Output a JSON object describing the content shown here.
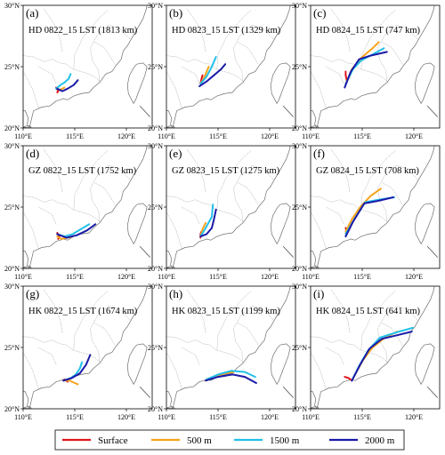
{
  "axes": {
    "x_ticks": [
      "110°E",
      "115°E",
      "120°E"
    ],
    "y_ticks": [
      "30°N",
      "25°N",
      "20°N"
    ],
    "x_tick_values": [
      110,
      115,
      120
    ],
    "y_tick_values": [
      30,
      25,
      20
    ],
    "lon_range": [
      110,
      122.5
    ],
    "lat_range": [
      20,
      30
    ]
  },
  "legend": [
    {
      "label": "Surface",
      "color": "#e0161e"
    },
    {
      "label": "500 m",
      "color": "#f5a31a"
    },
    {
      "label": "1500 m",
      "color": "#22c0e8"
    },
    {
      "label": "2000 m",
      "color": "#1a1aa8"
    }
  ],
  "panels": [
    {
      "label": "(a)",
      "title": "HD 0822_15 LST (1813 km)",
      "tracks": [
        {
          "level": "Surface",
          "points": [
            [
              113.2,
              23.3
            ],
            [
              113.4,
              23.0
            ],
            [
              113.3,
              22.9
            ]
          ]
        },
        {
          "level": "500 m",
          "points": [
            [
              113.3,
              23.2
            ],
            [
              113.5,
              23.1
            ],
            [
              113.8,
              23.2
            ],
            [
              114.0,
              23.3
            ]
          ]
        },
        {
          "level": "1500 m",
          "points": [
            [
              113.2,
              23.2
            ],
            [
              113.6,
              23.5
            ],
            [
              114.0,
              23.7
            ],
            [
              114.4,
              24.0
            ],
            [
              114.6,
              24.4
            ]
          ]
        },
        {
          "level": "2000 m",
          "points": [
            [
              113.3,
              23.2
            ],
            [
              113.8,
              23.0
            ],
            [
              114.3,
              23.2
            ],
            [
              114.9,
              23.5
            ],
            [
              115.3,
              23.9
            ]
          ]
        }
      ]
    },
    {
      "label": "(b)",
      "title": "HD 0823_15 LST (1329 km)",
      "tracks": [
        {
          "level": "Surface",
          "points": [
            [
              113.3,
              23.6
            ],
            [
              113.4,
              24.0
            ],
            [
              113.5,
              24.3
            ]
          ]
        },
        {
          "level": "500 m",
          "points": [
            [
              113.3,
              23.6
            ],
            [
              113.6,
              24.0
            ],
            [
              113.9,
              24.6
            ],
            [
              114.1,
              25.0
            ]
          ]
        },
        {
          "level": "1500 m",
          "points": [
            [
              113.3,
              23.6
            ],
            [
              113.9,
              24.2
            ],
            [
              114.4,
              25.0
            ],
            [
              114.8,
              25.8
            ]
          ]
        },
        {
          "level": "2000 m",
          "points": [
            [
              113.2,
              23.4
            ],
            [
              113.9,
              23.8
            ],
            [
              114.6,
              24.3
            ],
            [
              115.3,
              24.8
            ],
            [
              115.7,
              25.2
            ]
          ]
        }
      ]
    },
    {
      "label": "(c)",
      "title": "HD 0824_15 LST (747 km)",
      "tracks": [
        {
          "level": "Surface",
          "points": [
            [
              113.5,
              23.9
            ],
            [
              113.4,
              24.3
            ],
            [
              113.4,
              24.6
            ]
          ]
        },
        {
          "level": "500 m",
          "points": [
            [
              113.4,
              23.6
            ],
            [
              114.0,
              24.8
            ],
            [
              114.9,
              25.7
            ],
            [
              116.0,
              26.5
            ],
            [
              116.6,
              27.0
            ]
          ]
        },
        {
          "level": "1500 m",
          "points": [
            [
              113.4,
              23.6
            ],
            [
              114.1,
              24.8
            ],
            [
              114.9,
              25.5
            ],
            [
              116.0,
              26.0
            ],
            [
              117.1,
              26.5
            ]
          ]
        },
        {
          "level": "2000 m",
          "points": [
            [
              113.3,
              23.3
            ],
            [
              113.9,
              24.6
            ],
            [
              114.7,
              25.6
            ],
            [
              115.8,
              25.9
            ],
            [
              117.4,
              26.2
            ]
          ]
        }
      ]
    },
    {
      "label": "(d)",
      "title": "GZ 0822_15 LST (1752 km)",
      "tracks": [
        {
          "level": "Surface",
          "points": [
            [
              113.3,
              22.9
            ],
            [
              113.5,
              22.6
            ],
            [
              113.4,
              22.4
            ]
          ]
        },
        {
          "level": "500 m",
          "points": [
            [
              113.3,
              22.6
            ],
            [
              113.7,
              22.4
            ],
            [
              114.3,
              22.5
            ],
            [
              114.8,
              22.6
            ]
          ]
        },
        {
          "level": "1500 m",
          "points": [
            [
              113.3,
              22.8
            ],
            [
              114.0,
              22.6
            ],
            [
              114.8,
              22.8
            ],
            [
              115.6,
              23.2
            ],
            [
              116.4,
              23.6
            ]
          ]
        },
        {
          "level": "2000 m",
          "points": [
            [
              113.3,
              22.8
            ],
            [
              114.2,
              22.5
            ],
            [
              115.2,
              22.7
            ],
            [
              116.2,
              23.1
            ],
            [
              117.0,
              23.6
            ]
          ]
        }
      ]
    },
    {
      "label": "(e)",
      "title": "GZ 0823_15 LST (1275 km)",
      "tracks": [
        {
          "level": "Surface",
          "points": [
            [
              113.3,
              22.5
            ],
            [
              113.3,
              22.8
            ],
            [
              113.4,
              23.0
            ]
          ]
        },
        {
          "level": "500 m",
          "points": [
            [
              113.3,
              22.6
            ],
            [
              113.5,
              23.2
            ],
            [
              113.8,
              23.7
            ]
          ]
        },
        {
          "level": "1500 m",
          "points": [
            [
              113.3,
              22.6
            ],
            [
              113.8,
              23.3
            ],
            [
              114.4,
              24.2
            ],
            [
              114.5,
              25.2
            ]
          ]
        },
        {
          "level": "2000 m",
          "points": [
            [
              113.3,
              22.6
            ],
            [
              113.9,
              22.8
            ],
            [
              114.4,
              23.3
            ],
            [
              114.6,
              24.0
            ],
            [
              114.8,
              24.8
            ]
          ]
        }
      ]
    },
    {
      "label": "(f)",
      "title": "GZ 0824_15 LST (708 km)",
      "tracks": [
        {
          "level": "Surface",
          "points": [
            [
              113.4,
              23.3
            ],
            [
              113.5,
              23.0
            ],
            [
              113.4,
              22.8
            ]
          ]
        },
        {
          "level": "500 m",
          "points": [
            [
              113.4,
              23.0
            ],
            [
              114.0,
              24.0
            ],
            [
              114.8,
              25.0
            ],
            [
              115.8,
              25.9
            ],
            [
              116.8,
              26.5
            ]
          ]
        },
        {
          "level": "1500 m",
          "points": [
            [
              113.4,
              22.8
            ],
            [
              114.3,
              24.1
            ],
            [
              115.3,
              25.4
            ],
            [
              116.6,
              25.6
            ],
            [
              118.1,
              25.8
            ]
          ]
        },
        {
          "level": "2000 m",
          "points": [
            [
              113.4,
              22.6
            ],
            [
              114.1,
              23.8
            ],
            [
              115.2,
              25.3
            ],
            [
              116.5,
              25.5
            ],
            [
              118.0,
              25.8
            ]
          ]
        }
      ]
    },
    {
      "label": "(g)",
      "title": "HK 0822_15 LST (1674 km)",
      "tracks": [
        {
          "level": "Surface",
          "points": [
            [
              114.0,
              22.4
            ],
            [
              114.2,
              22.3
            ],
            [
              114.3,
              22.2
            ]
          ]
        },
        {
          "level": "500 m",
          "points": [
            [
              113.9,
              22.3
            ],
            [
              114.5,
              22.3
            ],
            [
              115.0,
              22.1
            ],
            [
              115.3,
              22.0
            ]
          ]
        },
        {
          "level": "1500 m",
          "points": [
            [
              113.9,
              22.3
            ],
            [
              114.6,
              22.5
            ],
            [
              115.1,
              22.8
            ],
            [
              115.5,
              23.3
            ],
            [
              115.7,
              23.8
            ]
          ]
        },
        {
          "level": "2000 m",
          "points": [
            [
              113.9,
              22.3
            ],
            [
              114.7,
              22.5
            ],
            [
              115.5,
              22.9
            ],
            [
              116.1,
              23.6
            ],
            [
              116.5,
              24.4
            ]
          ]
        }
      ]
    },
    {
      "label": "(h)",
      "title": "HK 0823_15 LST (1199 km)",
      "tracks": [
        {
          "level": "Surface",
          "points": [
            [
              113.9,
              22.4
            ],
            [
              114.2,
              22.5
            ],
            [
              114.6,
              22.6
            ]
          ]
        },
        {
          "level": "500 m",
          "points": [
            [
              113.9,
              22.4
            ],
            [
              114.7,
              22.6
            ],
            [
              115.7,
              22.9
            ],
            [
              116.5,
              23.0
            ]
          ]
        },
        {
          "level": "1500 m",
          "points": [
            [
              113.9,
              22.4
            ],
            [
              115.0,
              22.8
            ],
            [
              116.3,
              23.1
            ],
            [
              117.6,
              23.0
            ],
            [
              118.6,
              22.6
            ]
          ]
        },
        {
          "level": "2000 m",
          "points": [
            [
              113.8,
              22.3
            ],
            [
              115.0,
              22.6
            ],
            [
              116.4,
              22.8
            ],
            [
              117.6,
              22.6
            ],
            [
              118.7,
              22.1
            ]
          ]
        }
      ]
    },
    {
      "label": "(i)",
      "title": "HK 0824_15 LST (641 km)",
      "tracks": [
        {
          "level": "Surface",
          "points": [
            [
              114.0,
              22.3
            ],
            [
              113.7,
              22.5
            ],
            [
              113.3,
              22.6
            ]
          ]
        },
        {
          "level": "500 m",
          "points": [
            [
              114.0,
              22.3
            ],
            [
              114.5,
              23.1
            ],
            [
              115.1,
              24.0
            ],
            [
              116.0,
              25.0
            ],
            [
              117.2,
              25.8
            ],
            [
              118.4,
              26.3
            ]
          ]
        },
        {
          "level": "1500 m",
          "points": [
            [
              114.0,
              22.3
            ],
            [
              114.7,
              23.5
            ],
            [
              115.6,
              24.8
            ],
            [
              116.7,
              25.8
            ],
            [
              118.2,
              26.2
            ],
            [
              119.9,
              26.6
            ]
          ]
        },
        {
          "level": "2000 m",
          "points": [
            [
              114.0,
              22.3
            ],
            [
              114.8,
              23.6
            ],
            [
              115.7,
              24.9
            ],
            [
              116.9,
              25.7
            ],
            [
              118.4,
              26.0
            ],
            [
              119.8,
              26.3
            ]
          ]
        }
      ]
    }
  ]
}
